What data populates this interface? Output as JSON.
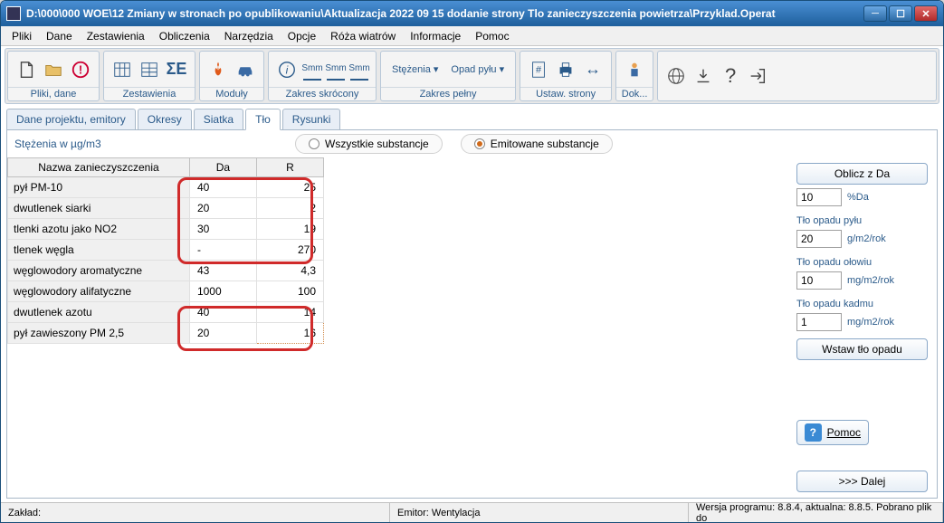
{
  "window": {
    "title": "D:\\000\\000 WOE\\12 Zmiany w stronach po opublikowaniu\\Aktualizacja 2022 09 15 dodanie strony Tlo zanieczyszczenia powietrza\\Przyklad.Operat"
  },
  "menu": [
    "Pliki",
    "Dane",
    "Zestawienia",
    "Obliczenia",
    "Narzędzia",
    "Opcje",
    "Róża wiatrów",
    "Informacje",
    "Pomoc"
  ],
  "toolbar": {
    "g1": "Pliki, dane",
    "g2": "Zestawienia",
    "g3": "Moduły",
    "g4": "Zakres skrócony",
    "g5_a": "Stężenia",
    "g5_b": "Opad pyłu",
    "g5": "Zakres pełny",
    "g6": "Ustaw. strony",
    "g7": "Dok..."
  },
  "tabs": {
    "t1": "Dane projektu, emitory",
    "t2": "Okresy",
    "t3": "Siatka",
    "t4": "Tło",
    "t5": "Rysunki"
  },
  "filter": {
    "label": "Stężenia w µg/m3",
    "r1": "Wszystkie substancje",
    "r2": "Emitowane substancje"
  },
  "table": {
    "h1": "Nazwa zanieczyszczenia",
    "h2": "Da",
    "h3": "R",
    "rows": [
      {
        "n": "pył PM-10",
        "da": "40",
        "r": "25"
      },
      {
        "n": "dwutlenek siarki",
        "da": "20",
        "r": "2"
      },
      {
        "n": "tlenki azotu jako NO2",
        "da": "30",
        "r": "19"
      },
      {
        "n": "tlenek węgla",
        "da": "-",
        "r": "270"
      },
      {
        "n": "węglowodory aromatyczne",
        "da": "43",
        "r": "4,3"
      },
      {
        "n": "węglowodory alifatyczne",
        "da": "1000",
        "r": "100"
      },
      {
        "n": "dwutlenek azotu",
        "da": "40",
        "r": "14"
      },
      {
        "n": "pył zawieszony PM 2,5",
        "da": "20",
        "r": "16"
      }
    ]
  },
  "side": {
    "btn_oblicz": "Oblicz z Da",
    "pct_val": "10",
    "pct_unit": "%Da",
    "sec1": "Tło opadu pyłu",
    "v1": "20",
    "u1": "g/m2/rok",
    "sec2": "Tło opadu ołowiu",
    "v2": "10",
    "u2": "mg/m2/rok",
    "sec3": "Tło opadu kadmu",
    "v3": "1",
    "u3": "mg/m2/rok",
    "btn_wstaw": "Wstaw tło opadu",
    "btn_pomoc": "Pomoc",
    "btn_dalej": ">>> Dalej"
  },
  "status": {
    "zaklad": "Zakład:",
    "emitor": "Emitor: Wentylacja",
    "wersja": "Wersja programu: 8.8.4,  aktualna: 8.8.5. Pobrano plik do"
  },
  "colors": {
    "title_grad_top": "#4a8fd4",
    "title_grad_bot": "#1e5f9c",
    "accent": "#2a5a8a",
    "red_highlight": "#d02a2a",
    "radio_sel": "#d06a1a"
  }
}
